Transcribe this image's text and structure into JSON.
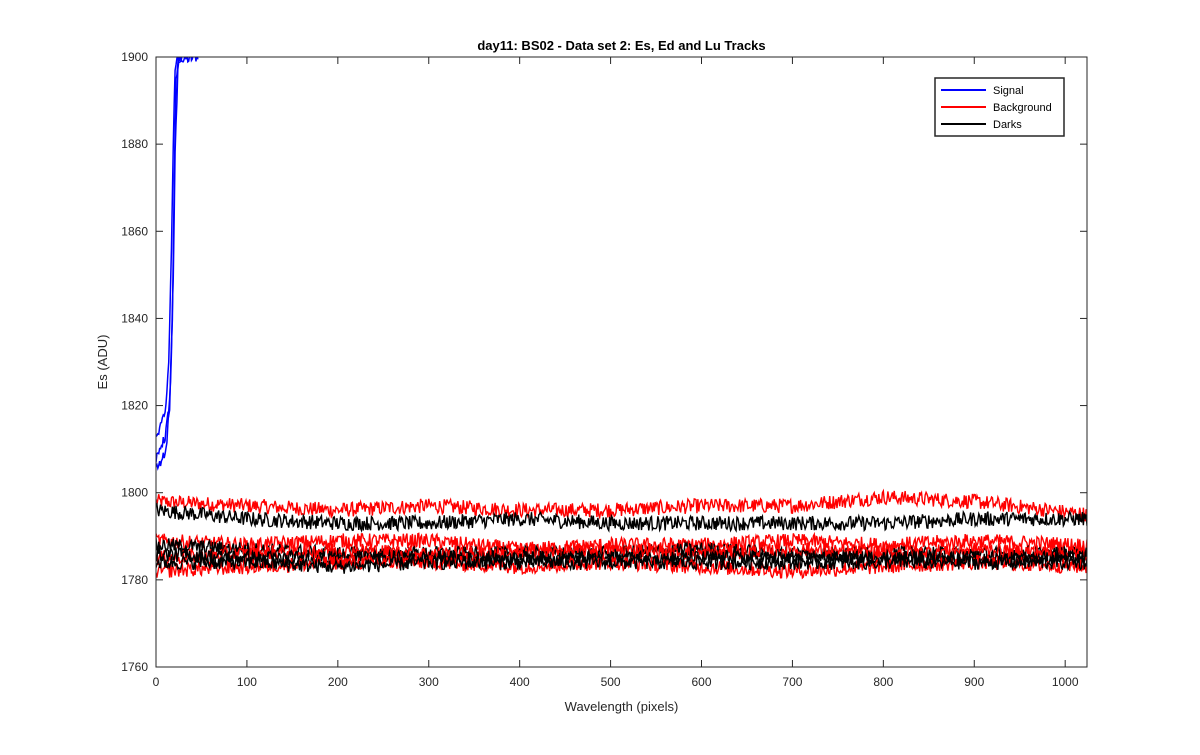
{
  "chart_data": {
    "type": "line",
    "title": "day11: BS02 - Data set 2: Es, Ed and Lu Tracks",
    "xlabel": "Wavelength (pixels)",
    "ylabel": "Es (ADU)",
    "xlim": [
      0,
      1024
    ],
    "ylim": [
      1760,
      1900
    ],
    "x_ticks": [
      0,
      100,
      200,
      300,
      400,
      500,
      600,
      700,
      800,
      900,
      1000
    ],
    "y_ticks": [
      1760,
      1780,
      1800,
      1820,
      1840,
      1860,
      1880,
      1900
    ],
    "grid": false,
    "legend_position": "top-right",
    "legend": [
      {
        "label": "Signal",
        "color": "#0000ff"
      },
      {
        "label": "Background",
        "color": "#ff0000"
      },
      {
        "label": "Darks",
        "color": "#000000"
      }
    ],
    "colors": {
      "Signal": "#0000ff",
      "Background": "#ff0000",
      "Darks": "#000000"
    },
    "series": [
      {
        "group": "Signal",
        "x": [
          0,
          5,
          10,
          15,
          18,
          20,
          22,
          25,
          30
        ],
        "values": [
          1808,
          1810,
          1813,
          1820,
          1840,
          1870,
          1895,
          1900,
          1900
        ]
      },
      {
        "group": "Signal",
        "x": [
          0,
          5,
          10,
          14,
          17,
          19,
          21,
          23,
          28
        ],
        "values": [
          1813,
          1815,
          1818,
          1830,
          1855,
          1880,
          1898,
          1900,
          1900
        ]
      },
      {
        "group": "Signal",
        "x": [
          0,
          6,
          12,
          16,
          19,
          21,
          24,
          27,
          46
        ],
        "values": [
          1805,
          1807,
          1811,
          1825,
          1850,
          1878,
          1897,
          1900,
          1900
        ]
      },
      {
        "group": "Background",
        "x": [
          0,
          100,
          200,
          300,
          400,
          500,
          600,
          700,
          800,
          900,
          1024
        ],
        "values": [
          1798,
          1797,
          1796,
          1797,
          1796,
          1796,
          1797,
          1797,
          1799,
          1798,
          1795
        ]
      },
      {
        "group": "Background",
        "x": [
          0,
          100,
          200,
          300,
          400,
          500,
          600,
          700,
          800,
          900,
          1024
        ],
        "values": [
          1789,
          1788,
          1789,
          1789,
          1787,
          1788,
          1788,
          1789,
          1788,
          1789,
          1788
        ]
      },
      {
        "group": "Background",
        "x": [
          0,
          100,
          200,
          300,
          400,
          500,
          600,
          700,
          800,
          900,
          1024
        ],
        "values": [
          1785,
          1786,
          1787,
          1786,
          1786,
          1787,
          1786,
          1787,
          1786,
          1787,
          1786
        ]
      },
      {
        "group": "Background",
        "x": [
          0,
          100,
          200,
          300,
          400,
          500,
          600,
          700,
          800,
          900,
          1024
        ],
        "values": [
          1782,
          1783,
          1784,
          1784,
          1783,
          1784,
          1783,
          1782,
          1783,
          1784,
          1783
        ]
      },
      {
        "group": "Darks",
        "x": [
          0,
          100,
          200,
          300,
          400,
          500,
          600,
          700,
          800,
          900,
          1024
        ],
        "values": [
          1796,
          1794,
          1793,
          1793,
          1794,
          1793,
          1793,
          1793,
          1793,
          1794,
          1794
        ]
      },
      {
        "group": "Darks",
        "x": [
          0,
          100,
          200,
          300,
          400,
          500,
          600,
          700,
          800,
          900,
          1024
        ],
        "values": [
          1788,
          1787,
          1786,
          1786,
          1786,
          1786,
          1787,
          1786,
          1786,
          1786,
          1786
        ]
      },
      {
        "group": "Darks",
        "x": [
          0,
          100,
          200,
          300,
          400,
          500,
          600,
          700,
          800,
          900,
          1024
        ],
        "values": [
          1786,
          1785,
          1785,
          1785,
          1785,
          1785,
          1785,
          1785,
          1785,
          1785,
          1785
        ]
      },
      {
        "group": "Darks",
        "x": [
          0,
          100,
          200,
          300,
          400,
          500,
          600,
          700,
          800,
          900,
          1024
        ],
        "values": [
          1784,
          1784,
          1783,
          1784,
          1784,
          1784,
          1784,
          1784,
          1784,
          1784,
          1784
        ]
      }
    ]
  }
}
